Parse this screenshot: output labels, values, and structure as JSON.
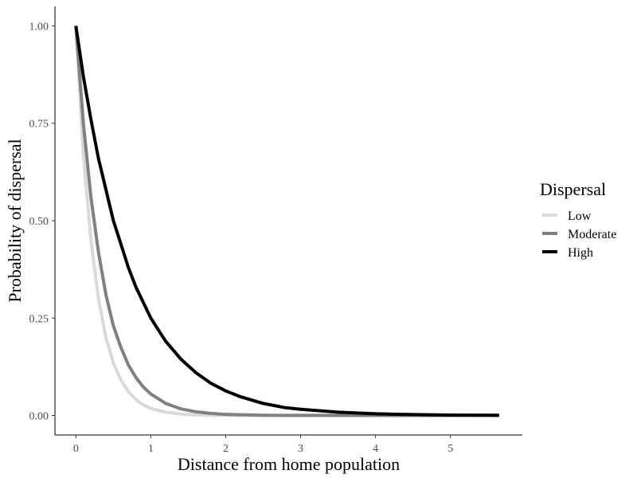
{
  "chart_data": {
    "type": "line",
    "title": "",
    "xlabel": "Distance from home population",
    "ylabel": "Probability of dispersal",
    "xlim": [
      -0.28,
      5.96
    ],
    "ylim": [
      -0.05,
      1.05
    ],
    "x_ticks": [
      0,
      1,
      2,
      3,
      4,
      5
    ],
    "x_tick_labels": [
      "0",
      "1",
      "2",
      "3",
      "4",
      "5"
    ],
    "y_ticks": [
      0,
      0.25,
      0.5,
      0.75,
      1
    ],
    "y_tick_labels": [
      "0.00",
      "0.25",
      "0.50",
      "0.75",
      "1.00"
    ],
    "grid": false,
    "legend": {
      "title": "Dispersal",
      "position": "right"
    },
    "series": [
      {
        "name": "Low",
        "color": "#d9d9d9",
        "x": [
          0,
          0.1,
          0.2,
          0.3,
          0.4,
          0.5,
          0.6,
          0.7,
          0.8,
          0.9,
          1.0,
          1.2,
          1.4,
          1.6,
          1.8,
          2.0,
          2.5,
          3.0,
          4.0,
          5.0,
          5.65
        ],
        "y": [
          1.0,
          0.67,
          0.45,
          0.3,
          0.2,
          0.135,
          0.091,
          0.061,
          0.041,
          0.027,
          0.018,
          0.0082,
          0.0037,
          0.0017,
          0.0007,
          0.0003,
          0.0,
          0.0,
          0.0,
          0.0,
          0.0
        ]
      },
      {
        "name": "Moderate",
        "color": "#808080",
        "x": [
          0,
          0.1,
          0.2,
          0.3,
          0.4,
          0.5,
          0.6,
          0.7,
          0.8,
          0.9,
          1.0,
          1.2,
          1.4,
          1.6,
          1.8,
          2.0,
          2.5,
          3.0,
          4.0,
          5.0,
          5.65
        ],
        "y": [
          1.0,
          0.75,
          0.56,
          0.42,
          0.31,
          0.23,
          0.175,
          0.13,
          0.098,
          0.073,
          0.055,
          0.031,
          0.017,
          0.0096,
          0.0054,
          0.003,
          0.0007,
          0.0002,
          0.0,
          0.0,
          0.0
        ]
      },
      {
        "name": "High",
        "color": "#000000",
        "x": [
          0,
          0.1,
          0.2,
          0.3,
          0.4,
          0.5,
          0.6,
          0.7,
          0.8,
          0.9,
          1.0,
          1.2,
          1.4,
          1.6,
          1.8,
          2.0,
          2.2,
          2.5,
          2.8,
          3.0,
          3.5,
          4.0,
          4.5,
          5.0,
          5.65
        ],
        "y": [
          1.0,
          0.87,
          0.76,
          0.66,
          0.58,
          0.5,
          0.44,
          0.38,
          0.33,
          0.29,
          0.25,
          0.19,
          0.145,
          0.11,
          0.083,
          0.063,
          0.048,
          0.031,
          0.02,
          0.016,
          0.0085,
          0.0044,
          0.0023,
          0.0012,
          0.0005
        ]
      }
    ]
  }
}
